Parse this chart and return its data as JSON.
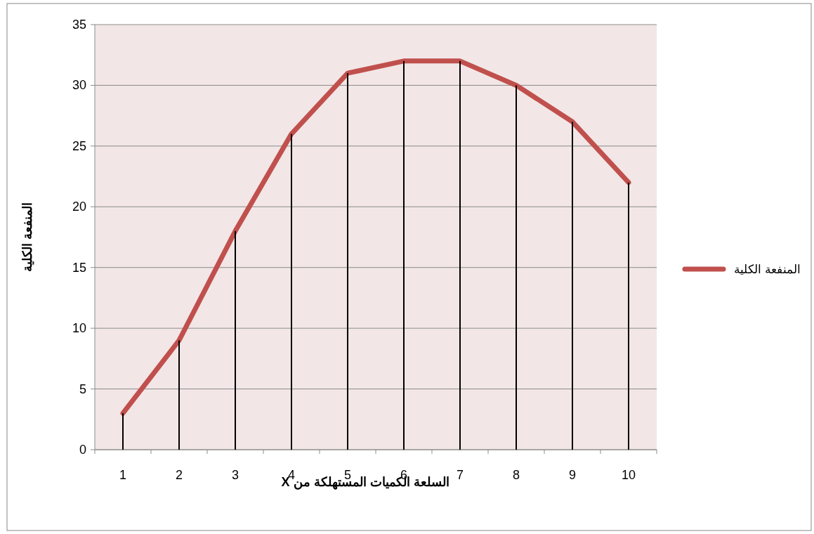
{
  "chart_data": {
    "type": "line",
    "xlabel": "السلعة  الكميات المستهلكة من X",
    "ylabel": "المنفعة الكلية",
    "categories": [
      "1",
      "2",
      "3",
      "4",
      "5",
      "6",
      "7",
      "8",
      "9",
      "10"
    ],
    "series": [
      {
        "type": "bar",
        "color": "#000000",
        "values": [
          3,
          9,
          18,
          26,
          31,
          32,
          32,
          30,
          27,
          22
        ]
      },
      {
        "name": "المنفعة الكلية",
        "color": "#c0504d",
        "values": [
          3,
          9,
          18,
          26,
          31,
          32,
          32,
          30,
          27,
          22
        ]
      }
    ],
    "ylim": [
      0,
      35
    ],
    "yticks": [
      0,
      5,
      10,
      15,
      20,
      25,
      30,
      35
    ],
    "grid": "y",
    "legend": "right",
    "marker": "none",
    "line_style": "solid"
  }
}
